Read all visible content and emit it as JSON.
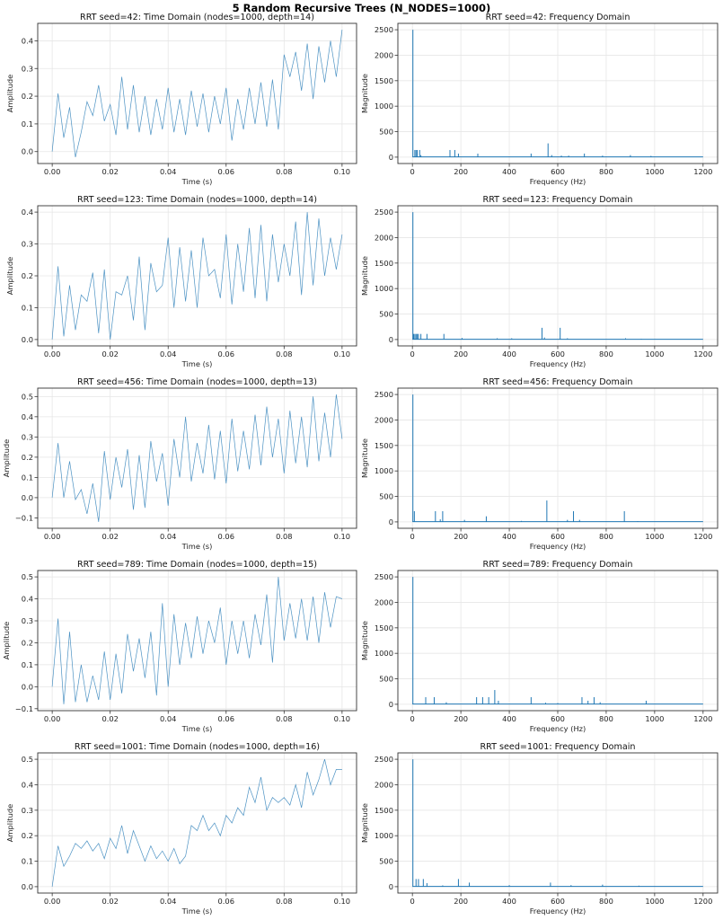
{
  "title": "5 Random Recursive Trees (N_NODES=1000)",
  "colors": {
    "line": "#1f77b4",
    "grid": "#e6e6e6",
    "axis": "#333333"
  },
  "chart_data": [
    {
      "type": "line",
      "title": "RRT seed=42: Time Domain (nodes=1000, depth=14)",
      "xlabel": "Time (s)",
      "ylabel": "Amplitude",
      "x_range": [
        0,
        0.1
      ],
      "xticks": [
        0,
        0.02,
        0.04,
        0.06,
        0.08,
        0.1
      ],
      "xtick_labels": [
        "0.00",
        "0.02",
        "0.04",
        "0.06",
        "0.08",
        "0.10"
      ],
      "yticks": [
        0,
        0.1,
        0.2,
        0.3,
        0.4
      ],
      "ytick_labels": [
        "0.0",
        "0.1",
        "0.2",
        "0.3",
        "0.4"
      ],
      "grid": true,
      "y": [
        0.0,
        0.21,
        0.05,
        0.16,
        -0.02,
        0.07,
        0.18,
        0.13,
        0.24,
        0.11,
        0.17,
        0.06,
        0.27,
        0.08,
        0.24,
        0.07,
        0.2,
        0.06,
        0.19,
        0.08,
        0.23,
        0.07,
        0.19,
        0.06,
        0.22,
        0.09,
        0.21,
        0.07,
        0.2,
        0.1,
        0.23,
        0.04,
        0.19,
        0.08,
        0.23,
        0.1,
        0.25,
        0.09,
        0.26,
        0.08,
        0.35,
        0.27,
        0.36,
        0.22,
        0.39,
        0.19,
        0.38,
        0.25,
        0.4,
        0.27,
        0.44
      ]
    },
    {
      "type": "line",
      "title": "RRT seed=42: Frequency Domain",
      "xlabel": "Frequency (Hz)",
      "ylabel": "Magnitude",
      "x_range": [
        0,
        1200
      ],
      "y_range": [
        0,
        2500
      ],
      "xticks": [
        0,
        200,
        400,
        600,
        800,
        1000,
        1200
      ],
      "xtick_labels": [
        "0",
        "200",
        "400",
        "600",
        "800",
        "1000",
        "1200"
      ],
      "yticks": [
        0,
        500,
        1000,
        1500,
        2000,
        2500
      ],
      "ytick_labels": [
        "0",
        "500",
        "1000",
        "1500",
        "2000",
        "2500"
      ],
      "grid": true,
      "peaks": [
        [
          2,
          2500
        ],
        [
          10,
          140
        ],
        [
          15,
          140
        ],
        [
          20,
          140
        ],
        [
          30,
          140
        ],
        [
          35,
          40
        ],
        [
          155,
          140
        ],
        [
          175,
          140
        ],
        [
          190,
          70
        ],
        [
          270,
          70
        ],
        [
          490,
          70
        ],
        [
          560,
          270
        ],
        [
          575,
          40
        ],
        [
          615,
          30
        ],
        [
          645,
          30
        ],
        [
          710,
          70
        ],
        [
          785,
          30
        ],
        [
          900,
          40
        ],
        [
          985,
          25
        ]
      ]
    },
    {
      "type": "line",
      "title": "RRT seed=123: Time Domain (nodes=1000, depth=14)",
      "xlabel": "Time (s)",
      "ylabel": "Amplitude",
      "x_range": [
        0,
        0.1
      ],
      "xticks": [
        0,
        0.02,
        0.04,
        0.06,
        0.08,
        0.1
      ],
      "xtick_labels": [
        "0.00",
        "0.02",
        "0.04",
        "0.06",
        "0.08",
        "0.10"
      ],
      "yticks": [
        0,
        0.1,
        0.2,
        0.3,
        0.4
      ],
      "ytick_labels": [
        "0.0",
        "0.1",
        "0.2",
        "0.3",
        "0.4"
      ],
      "grid": true,
      "y": [
        0.0,
        0.23,
        0.01,
        0.17,
        0.03,
        0.14,
        0.12,
        0.21,
        0.02,
        0.22,
        0.0,
        0.15,
        0.14,
        0.2,
        0.06,
        0.26,
        0.03,
        0.24,
        0.15,
        0.17,
        0.32,
        0.1,
        0.29,
        0.12,
        0.28,
        0.1,
        0.32,
        0.2,
        0.22,
        0.13,
        0.33,
        0.11,
        0.3,
        0.15,
        0.35,
        0.13,
        0.36,
        0.12,
        0.33,
        0.18,
        0.3,
        0.2,
        0.37,
        0.14,
        0.4,
        0.17,
        0.38,
        0.2,
        0.32,
        0.22,
        0.33
      ]
    },
    {
      "type": "line",
      "title": "RRT seed=123: Frequency Domain",
      "xlabel": "Frequency (Hz)",
      "ylabel": "Magnitude",
      "x_range": [
        0,
        1200
      ],
      "y_range": [
        0,
        2500
      ],
      "xticks": [
        0,
        200,
        400,
        600,
        800,
        1000,
        1200
      ],
      "xtick_labels": [
        "0",
        "200",
        "400",
        "600",
        "800",
        "1000",
        "1200"
      ],
      "yticks": [
        0,
        500,
        1000,
        1500,
        2000,
        2500
      ],
      "ytick_labels": [
        "0",
        "500",
        "1000",
        "1500",
        "2000",
        "2500"
      ],
      "grid": true,
      "peaks": [
        [
          2,
          2500
        ],
        [
          5,
          110
        ],
        [
          10,
          110
        ],
        [
          15,
          110
        ],
        [
          20,
          110
        ],
        [
          25,
          110
        ],
        [
          35,
          110
        ],
        [
          60,
          110
        ],
        [
          130,
          110
        ],
        [
          205,
          30
        ],
        [
          350,
          25
        ],
        [
          410,
          25
        ],
        [
          535,
          230
        ],
        [
          545,
          40
        ],
        [
          610,
          230
        ],
        [
          640,
          25
        ],
        [
          880,
          25
        ],
        [
          945,
          15
        ]
      ]
    },
    {
      "type": "line",
      "title": "RRT seed=456: Time Domain (nodes=1000, depth=13)",
      "xlabel": "Time (s)",
      "ylabel": "Amplitude",
      "x_range": [
        0,
        0.1
      ],
      "xticks": [
        0,
        0.02,
        0.04,
        0.06,
        0.08,
        0.1
      ],
      "xtick_labels": [
        "0.00",
        "0.02",
        "0.04",
        "0.06",
        "0.08",
        "0.10"
      ],
      "yticks": [
        -0.1,
        0,
        0.1,
        0.2,
        0.3,
        0.4,
        0.5
      ],
      "ytick_labels": [
        "−0.1",
        "0.0",
        "0.1",
        "0.2",
        "0.3",
        "0.4",
        "0.5"
      ],
      "grid": true,
      "y": [
        0.0,
        0.27,
        0.0,
        0.18,
        -0.01,
        0.04,
        -0.08,
        0.07,
        -0.12,
        0.23,
        -0.01,
        0.2,
        0.05,
        0.24,
        -0.06,
        0.21,
        -0.05,
        0.28,
        0.08,
        0.22,
        -0.04,
        0.29,
        0.1,
        0.4,
        0.08,
        0.27,
        0.12,
        0.36,
        0.09,
        0.33,
        0.07,
        0.39,
        0.13,
        0.33,
        0.14,
        0.41,
        0.16,
        0.45,
        0.2,
        0.39,
        0.12,
        0.43,
        0.17,
        0.4,
        0.15,
        0.5,
        0.18,
        0.42,
        0.2,
        0.51,
        0.29
      ]
    },
    {
      "type": "line",
      "title": "RRT seed=456: Frequency Domain",
      "xlabel": "Frequency (Hz)",
      "ylabel": "Magnitude",
      "x_range": [
        0,
        1200
      ],
      "y_range": [
        0,
        2500
      ],
      "xticks": [
        0,
        200,
        400,
        600,
        800,
        1000,
        1200
      ],
      "xtick_labels": [
        "0",
        "200",
        "400",
        "600",
        "800",
        "1000",
        "1200"
      ],
      "yticks": [
        0,
        500,
        1000,
        1500,
        2000,
        2500
      ],
      "ytick_labels": [
        "0",
        "500",
        "1000",
        "1500",
        "2000",
        "2500"
      ],
      "grid": true,
      "peaks": [
        [
          2,
          2500
        ],
        [
          8,
          210
        ],
        [
          95,
          210
        ],
        [
          115,
          50
        ],
        [
          125,
          210
        ],
        [
          215,
          40
        ],
        [
          305,
          110
        ],
        [
          450,
          20
        ],
        [
          555,
          420
        ],
        [
          640,
          40
        ],
        [
          665,
          210
        ],
        [
          690,
          40
        ],
        [
          875,
          210
        ],
        [
          930,
          15
        ]
      ]
    },
    {
      "type": "line",
      "title": "RRT seed=789: Time Domain (nodes=1000, depth=15)",
      "xlabel": "Time (s)",
      "ylabel": "Amplitude",
      "x_range": [
        0,
        0.1
      ],
      "xticks": [
        0,
        0.02,
        0.04,
        0.06,
        0.08,
        0.1
      ],
      "xtick_labels": [
        "0.00",
        "0.02",
        "0.04",
        "0.06",
        "0.08",
        "0.10"
      ],
      "yticks": [
        -0.1,
        0,
        0.1,
        0.2,
        0.3,
        0.4,
        0.5
      ],
      "ytick_labels": [
        "−0.1",
        "0.0",
        "0.1",
        "0.2",
        "0.3",
        "0.4",
        "0.5"
      ],
      "grid": true,
      "y": [
        0.0,
        0.31,
        -0.08,
        0.25,
        -0.07,
        0.1,
        -0.07,
        0.05,
        -0.06,
        0.16,
        -0.06,
        0.15,
        -0.03,
        0.24,
        0.07,
        0.22,
        0.04,
        0.25,
        -0.04,
        0.38,
        0.0,
        0.33,
        0.1,
        0.29,
        0.13,
        0.32,
        0.15,
        0.3,
        0.2,
        0.36,
        0.1,
        0.3,
        0.15,
        0.3,
        0.13,
        0.33,
        0.19,
        0.42,
        0.11,
        0.5,
        0.21,
        0.38,
        0.22,
        0.4,
        0.21,
        0.41,
        0.2,
        0.43,
        0.27,
        0.41,
        0.4
      ]
    },
    {
      "type": "line",
      "title": "RRT seed=789: Frequency Domain",
      "xlabel": "Frequency (Hz)",
      "ylabel": "Magnitude",
      "x_range": [
        0,
        1200
      ],
      "y_range": [
        0,
        2500
      ],
      "xticks": [
        0,
        200,
        400,
        600,
        800,
        1000,
        1200
      ],
      "xtick_labels": [
        "0",
        "200",
        "400",
        "600",
        "800",
        "1000",
        "1200"
      ],
      "yticks": [
        0,
        500,
        1000,
        1500,
        2000,
        2500
      ],
      "ytick_labels": [
        "0",
        "500",
        "1000",
        "1500",
        "2000",
        "2500"
      ],
      "grid": true,
      "peaks": [
        [
          2,
          2500
        ],
        [
          55,
          140
        ],
        [
          90,
          140
        ],
        [
          140,
          40
        ],
        [
          265,
          140
        ],
        [
          290,
          140
        ],
        [
          315,
          140
        ],
        [
          340,
          280
        ],
        [
          355,
          70
        ],
        [
          490,
          140
        ],
        [
          550,
          30
        ],
        [
          600,
          25
        ],
        [
          700,
          140
        ],
        [
          725,
          70
        ],
        [
          750,
          140
        ],
        [
          775,
          40
        ],
        [
          965,
          70
        ]
      ]
    },
    {
      "type": "line",
      "title": "RRT seed=1001: Time Domain (nodes=1000, depth=16)",
      "xlabel": "Time (s)",
      "ylabel": "Amplitude",
      "x_range": [
        0,
        0.1
      ],
      "xticks": [
        0,
        0.02,
        0.04,
        0.06,
        0.08,
        0.1
      ],
      "xtick_labels": [
        "0.00",
        "0.02",
        "0.04",
        "0.06",
        "0.08",
        "0.10"
      ],
      "yticks": [
        0,
        0.1,
        0.2,
        0.3,
        0.4,
        0.5
      ],
      "ytick_labels": [
        "0.0",
        "0.1",
        "0.2",
        "0.3",
        "0.4",
        "0.5"
      ],
      "grid": true,
      "y": [
        0.0,
        0.16,
        0.08,
        0.12,
        0.17,
        0.15,
        0.18,
        0.14,
        0.17,
        0.11,
        0.19,
        0.15,
        0.24,
        0.13,
        0.22,
        0.16,
        0.1,
        0.16,
        0.11,
        0.14,
        0.1,
        0.15,
        0.09,
        0.12,
        0.24,
        0.22,
        0.28,
        0.22,
        0.25,
        0.2,
        0.28,
        0.25,
        0.31,
        0.28,
        0.39,
        0.33,
        0.43,
        0.3,
        0.35,
        0.33,
        0.35,
        0.32,
        0.4,
        0.31,
        0.45,
        0.36,
        0.42,
        0.5,
        0.4,
        0.46,
        0.46
      ]
    },
    {
      "type": "line",
      "title": "RRT seed=1001: Frequency Domain",
      "xlabel": "Frequency (Hz)",
      "ylabel": "Magnitude",
      "x_range": [
        0,
        1200
      ],
      "y_range": [
        0,
        2500
      ],
      "xticks": [
        0,
        200,
        400,
        600,
        800,
        1000,
        1200
      ],
      "xtick_labels": [
        "0",
        "200",
        "400",
        "600",
        "800",
        "1000",
        "1200"
      ],
      "yticks": [
        0,
        500,
        1000,
        1500,
        2000,
        2500
      ],
      "ytick_labels": [
        "0",
        "500",
        "1000",
        "1500",
        "2000",
        "2500"
      ],
      "grid": true,
      "peaks": [
        [
          2,
          2500
        ],
        [
          15,
          150
        ],
        [
          25,
          150
        ],
        [
          45,
          150
        ],
        [
          60,
          70
        ],
        [
          125,
          25
        ],
        [
          190,
          150
        ],
        [
          235,
          80
        ],
        [
          400,
          30
        ],
        [
          570,
          80
        ],
        [
          655,
          30
        ],
        [
          785,
          40
        ],
        [
          935,
          20
        ]
      ]
    }
  ]
}
